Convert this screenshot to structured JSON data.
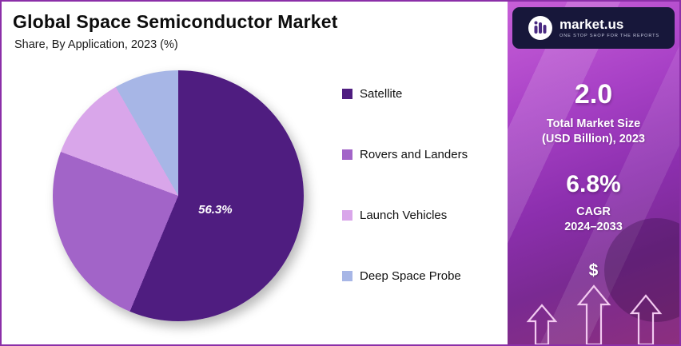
{
  "header": {
    "title": "Global Space Semiconductor Market",
    "subtitle": "Share, By Application, 2023 (%)"
  },
  "chart_data": {
    "type": "pie",
    "title": "Global Space Semiconductor Market",
    "subtitle": "Share, By Application, 2023 (%)",
    "unit": "%",
    "direction": "clockwise",
    "start_angle_deg": 0,
    "legend_position": "right",
    "slices": [
      {
        "label": "Satellite",
        "value": 56.3,
        "color": "#4f1d80",
        "display_label": "56.3%"
      },
      {
        "label": "Rovers and Landers",
        "value": 24.4,
        "color": "#a264c8"
      },
      {
        "label": "Launch Vehicles",
        "value": 11.0,
        "color": "#d9a6ea"
      },
      {
        "label": "Deep Space Probe",
        "value": 8.3,
        "color": "#a7b6e6"
      }
    ],
    "annotations": [
      {
        "text": "56.3%",
        "slice": "Satellite"
      }
    ]
  },
  "sidebar": {
    "logo_text": "market.us",
    "logo_tagline": "ONE STOP SHOP FOR THE REPORTS",
    "stat1_value": "2.0",
    "stat1_line1": "Total Market Size",
    "stat1_line2": "(USD Billion), 2023",
    "stat2_value": "6.8%",
    "stat2_line1": "CAGR",
    "stat2_line2": "2024–2033",
    "currency_symbol": "$"
  },
  "colors": {
    "frame_border": "#8b2fa8",
    "panel_gradient_top": "#c75fd8",
    "panel_gradient_bottom": "#8c2f7e",
    "logo_card_bg": "#17173a"
  }
}
